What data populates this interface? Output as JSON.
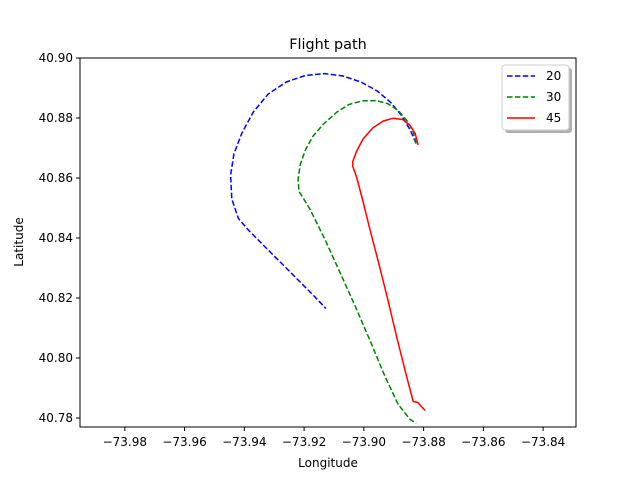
{
  "chart_data": {
    "type": "line",
    "title": "Flight path",
    "xlabel": "Longitude",
    "ylabel": "Latitude",
    "xlim": [
      -73.995,
      -73.829
    ],
    "ylim": [
      40.777,
      40.9
    ],
    "xticks": [
      -73.98,
      -73.96,
      -73.94,
      -73.92,
      -73.9,
      -73.88,
      -73.86,
      -73.84
    ],
    "xtick_labels": [
      "−73.98",
      "−73.96",
      "−73.94",
      "−73.92",
      "−73.90",
      "−73.88",
      "−73.86",
      "−73.84"
    ],
    "yticks": [
      40.78,
      40.8,
      40.82,
      40.84,
      40.86,
      40.88,
      40.9
    ],
    "ytick_labels": [
      "40.78",
      "40.80",
      "40.82",
      "40.84",
      "40.86",
      "40.88",
      "40.90"
    ],
    "grid": false,
    "legend": "top-right",
    "series": [
      {
        "name": "20",
        "color": "#0000ff",
        "style": "dashed",
        "x": [
          -73.8825,
          -73.8845,
          -73.8875,
          -73.891,
          -73.8955,
          -73.901,
          -73.907,
          -73.913,
          -73.9195,
          -73.926,
          -73.932,
          -73.937,
          -73.9408,
          -73.9435,
          -73.9446,
          -73.9442,
          -73.942,
          -73.9385,
          -73.9375,
          -73.9325,
          -73.9275,
          -73.922,
          -73.917,
          -73.9127
        ],
        "y": [
          40.8715,
          40.876,
          40.881,
          40.8852,
          40.889,
          40.892,
          40.894,
          40.8948,
          40.8942,
          40.892,
          40.888,
          40.882,
          40.875,
          40.868,
          40.861,
          40.853,
          40.8465,
          40.8425,
          40.8415,
          40.8365,
          40.8315,
          40.826,
          40.821,
          40.8165
        ]
      },
      {
        "name": "30",
        "color": "#008000",
        "style": "dashed",
        "x": [
          -73.8825,
          -73.8835,
          -73.8855,
          -73.8885,
          -73.892,
          -73.896,
          -73.9005,
          -73.905,
          -73.909,
          -73.9135,
          -73.917,
          -73.9195,
          -73.9213,
          -73.922,
          -73.9217,
          -73.9198,
          -73.918,
          -73.913,
          -73.908,
          -73.903,
          -73.898,
          -73.893,
          -73.8885,
          -73.8845,
          -73.8825
        ],
        "y": [
          40.8715,
          40.8755,
          40.879,
          40.8825,
          40.8848,
          40.8858,
          40.8857,
          40.8845,
          40.882,
          40.878,
          40.874,
          40.8695,
          40.8645,
          40.8595,
          40.8555,
          40.8525,
          40.8495,
          40.8395,
          40.8285,
          40.8175,
          40.806,
          40.794,
          40.7845,
          40.7795,
          40.7782
        ]
      },
      {
        "name": "45",
        "color": "#ff0000",
        "style": "solid",
        "x": [
          -73.8818,
          -73.8828,
          -73.8845,
          -73.887,
          -73.8903,
          -73.8935,
          -73.897,
          -73.9003,
          -73.9025,
          -73.9037,
          -73.9037,
          -73.9025,
          -73.9005,
          -73.898,
          -73.895,
          -73.892,
          -73.889,
          -73.886,
          -73.8835,
          -73.882,
          -73.8795
        ],
        "y": [
          40.871,
          40.8748,
          40.8775,
          40.8795,
          40.8799,
          40.879,
          40.8767,
          40.873,
          40.8688,
          40.8655,
          40.8638,
          40.8605,
          40.853,
          40.843,
          40.8315,
          40.8195,
          40.807,
          40.795,
          40.7855,
          40.7852,
          40.7825
        ]
      }
    ]
  }
}
